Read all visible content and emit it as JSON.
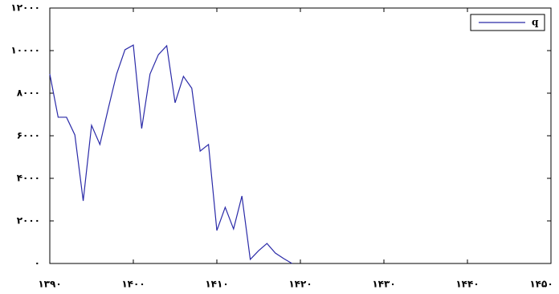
{
  "chart_data": {
    "type": "line",
    "x": [
      1390,
      1391,
      1392,
      1393,
      1394,
      1395,
      1396,
      1397,
      1398,
      1399,
      1400,
      1401,
      1402,
      1403,
      1404,
      1405,
      1406,
      1407,
      1408,
      1409,
      1410,
      1411,
      1412,
      1413,
      1414,
      1415,
      1416,
      1417,
      1418,
      1419
    ],
    "series": [
      {
        "name": "q",
        "color": "#2a2aa8",
        "values": [
          8900,
          6870,
          6870,
          6040,
          2940,
          6490,
          5590,
          7280,
          8900,
          10040,
          10260,
          6340,
          8900,
          9810,
          10230,
          7550,
          8790,
          8230,
          5280,
          5590,
          1550,
          2640,
          1620,
          3170,
          190,
          600,
          940,
          490,
          230,
          0
        ]
      }
    ],
    "xlim": [
      1390,
      1450
    ],
    "xticks": [
      {
        "value": 1390,
        "label": "۱۳۹۰"
      },
      {
        "value": 1400,
        "label": "۱۴۰۰"
      },
      {
        "value": 1410,
        "label": "۱۴۱۰"
      },
      {
        "value": 1420,
        "label": "۱۴۲۰"
      },
      {
        "value": 1430,
        "label": "۱۴۳۰"
      },
      {
        "value": 1440,
        "label": "۱۴۴۰"
      },
      {
        "value": 1450,
        "label": "۱۴۵۰"
      }
    ],
    "ylim": [
      0,
      12000
    ],
    "yticks": [
      {
        "value": 0,
        "label": "۰"
      },
      {
        "value": 2000,
        "label": "۲۰۰۰"
      },
      {
        "value": 4000,
        "label": "۴۰۰۰"
      },
      {
        "value": 6000,
        "label": "۶۰۰۰"
      },
      {
        "value": 8000,
        "label": "۸۰۰۰"
      },
      {
        "value": 10000,
        "label": "۱۰۰۰۰"
      },
      {
        "value": 12000,
        "label": "۱۲۰۰۰"
      }
    ],
    "legend": "upper right"
  }
}
